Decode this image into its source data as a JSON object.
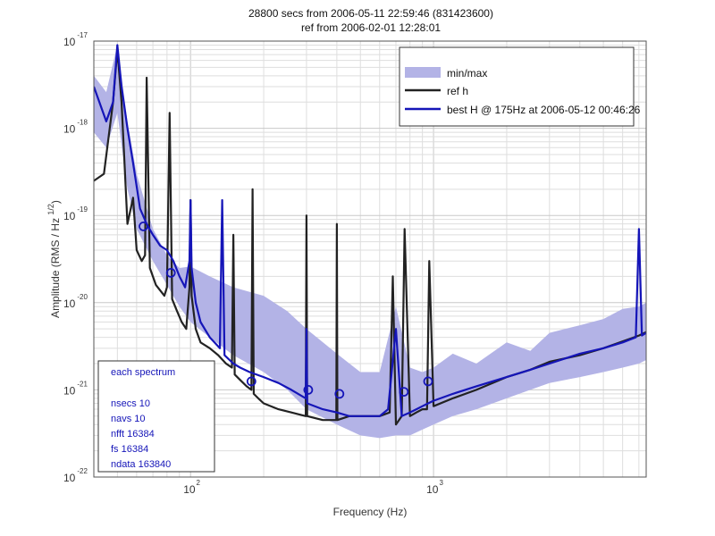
{
  "chart_data": {
    "type": "line",
    "title_line1": "28800 secs from 2006-05-11 22:59:46 (831423600)",
    "title_line2": "ref from 2006-02-01 12:28:01",
    "xlabel": "Frequency (Hz)",
    "ylabel_main": "Amplitude (RMS / Hz ",
    "ylabel_sup": "1/2",
    "ylabel_close": ")",
    "x_scale": "log",
    "y_scale": "log",
    "xlim": [
      40,
      7500
    ],
    "ylim": [
      1e-22,
      1e-17
    ],
    "grid": true,
    "x_ticks": [
      {
        "value": 100,
        "base": "10",
        "exp": "2"
      },
      {
        "value": 1000,
        "base": "10",
        "exp": "3"
      }
    ],
    "y_ticks": [
      {
        "value": 1e-22,
        "base": "10",
        "exp": "-22"
      },
      {
        "value": 1e-21,
        "base": "10",
        "exp": "-21"
      },
      {
        "value": 1e-20,
        "base": "10",
        "exp": "-20"
      },
      {
        "value": 1e-19,
        "base": "10",
        "exp": "-19"
      },
      {
        "value": 1e-18,
        "base": "10",
        "exp": "-18"
      },
      {
        "value": 1e-17,
        "base": "10",
        "exp": "-17"
      }
    ],
    "legend": {
      "placement": "top-right",
      "entries": [
        {
          "label": "min/max",
          "kind": "patch",
          "color": "#b3b3e6"
        },
        {
          "label": "ref h",
          "kind": "line",
          "color": "#222222"
        },
        {
          "label": "best H @ 175Hz at 2006-05-12 00:46:26",
          "kind": "line",
          "color": "#1515b8"
        }
      ]
    },
    "info_box": {
      "placement": "bottom-left",
      "lines": [
        "each spectrum",
        "",
        "nsecs 10",
        "navs 10",
        "nfft 16384",
        "fs 16384",
        "ndata 163840"
      ]
    },
    "series": [
      {
        "name": "min/max",
        "kind": "band",
        "color": "#b3b3e6",
        "x": [
          40,
          45,
          50,
          55,
          60,
          70,
          80,
          90,
          100,
          120,
          150,
          200,
          250,
          300,
          400,
          500,
          600,
          700,
          800,
          900,
          1000,
          1200,
          1500,
          2000,
          2500,
          3000,
          4000,
          5000,
          6000,
          7000,
          7500
        ],
        "upper": [
          4e-18,
          2.6e-18,
          9e-18,
          1.2e-18,
          3e-19,
          7e-20,
          3.5e-20,
          2.5e-20,
          2.6e-20,
          2e-20,
          1.5e-20,
          1.2e-20,
          8e-21,
          5e-21,
          2.6e-21,
          1.6e-21,
          1.6e-21,
          9e-21,
          1.8e-21,
          1.6e-21,
          1.8e-21,
          2.6e-21,
          2e-21,
          3.5e-21,
          2.8e-21,
          4.5e-21,
          5.5e-21,
          6.5e-21,
          8.5e-21,
          9e-21,
          1e-20
        ],
        "lower": [
          9e-19,
          6e-19,
          1.5e-18,
          2e-19,
          7e-20,
          3e-20,
          1.6e-20,
          9e-21,
          6e-21,
          4e-21,
          2.5e-21,
          1.6e-21,
          1e-21,
          6e-22,
          4e-22,
          3e-22,
          2.8e-22,
          3e-22,
          3e-22,
          3.5e-22,
          4e-22,
          5e-22,
          6e-22,
          8e-22,
          1e-21,
          1.2e-21,
          1.4e-21,
          1.6e-21,
          1.8e-21,
          2e-21,
          2.2e-21
        ]
      },
      {
        "name": "ref h",
        "kind": "line",
        "color": "#222222",
        "x": [
          40,
          44,
          48,
          50,
          52,
          55,
          58,
          60,
          63,
          65,
          66,
          68,
          72,
          78,
          80,
          82,
          84,
          88,
          92,
          96,
          99,
          100,
          101,
          105,
          110,
          120,
          130,
          140,
          148,
          150,
          152,
          160,
          170,
          178,
          180,
          182,
          190,
          200,
          230,
          260,
          298,
          300,
          302,
          350,
          398,
          400,
          402,
          450,
          500,
          600,
          660,
          680,
          700,
          740,
          760,
          800,
          850,
          900,
          940,
          960,
          1000,
          1200,
          1500,
          2000,
          2500,
          3000,
          4000,
          5000,
          6000,
          7000,
          7500
        ],
        "y": [
          2.5e-19,
          3e-19,
          2e-18,
          8e-18,
          2e-18,
          8e-20,
          1.6e-19,
          4e-20,
          3e-20,
          3.5e-20,
          3.8e-18,
          2.5e-20,
          1.6e-20,
          1.2e-20,
          1.5e-20,
          1.5e-18,
          1.1e-20,
          8e-21,
          6e-21,
          5e-21,
          1.5e-20,
          1.5e-19,
          1.2e-20,
          5e-21,
          3.5e-21,
          3e-21,
          2.5e-21,
          2e-21,
          1.8e-21,
          6e-20,
          1.5e-21,
          1.3e-21,
          1.1e-21,
          1e-21,
          2e-19,
          9e-22,
          8e-22,
          7e-22,
          6e-22,
          5.5e-22,
          5e-22,
          1e-19,
          5e-22,
          4.5e-22,
          4.5e-22,
          8e-20,
          4.5e-22,
          5e-22,
          5e-22,
          5e-22,
          5.5e-22,
          2e-20,
          4e-22,
          5e-22,
          7e-20,
          5e-22,
          5.5e-22,
          6e-22,
          6e-22,
          3e-20,
          6.5e-22,
          8e-22,
          1e-21,
          1.4e-21,
          1.7e-21,
          2.1e-21,
          2.5e-21,
          3e-21,
          3.6e-21,
          4.2e-21,
          4.6e-21
        ]
      },
      {
        "name": "best H @ 175Hz at 2006-05-12 00:46:26",
        "kind": "line",
        "color": "#1515b8",
        "x": [
          40,
          45,
          48,
          50,
          52,
          55,
          58,
          62,
          66,
          70,
          75,
          80,
          85,
          90,
          95,
          99,
          100,
          101,
          105,
          110,
          120,
          132,
          135,
          138,
          150,
          160,
          175,
          200,
          230,
          260,
          298,
          300,
          302,
          350,
          400,
          450,
          500,
          550,
          600,
          650,
          700,
          740,
          800,
          850,
          900,
          950,
          1000,
          1200,
          1500,
          2000,
          2500,
          3000,
          3500,
          4000,
          5000,
          6000,
          6800,
          7000,
          7200,
          7500
        ],
        "y": [
          3e-18,
          1.2e-18,
          2e-18,
          9e-18,
          3e-18,
          1e-18,
          4e-19,
          1.2e-19,
          8e-20,
          6e-20,
          4.5e-20,
          4e-20,
          3e-20,
          2e-20,
          1.5e-20,
          3e-20,
          1.5e-19,
          2.5e-20,
          1e-20,
          6e-21,
          4e-21,
          3e-21,
          1.5e-19,
          2.5e-21,
          2e-21,
          1.8e-21,
          1.6e-21,
          1.4e-21,
          1.2e-21,
          1e-21,
          8e-22,
          5e-21,
          7e-22,
          6e-22,
          5.5e-22,
          5e-22,
          5e-22,
          5e-22,
          5e-22,
          6e-22,
          5e-21,
          5e-22,
          5.5e-22,
          6e-22,
          6.5e-22,
          7e-22,
          7.5e-22,
          9e-22,
          1.1e-21,
          1.4e-21,
          1.7e-21,
          2e-21,
          2.3e-21,
          2.6e-21,
          3e-21,
          3.5e-21,
          4e-21,
          7e-20,
          4.2e-21,
          4.5e-21
        ]
      }
    ],
    "markers": {
      "shape": "circle",
      "color": "#1515b8",
      "points": [
        {
          "x": 64,
          "y": 7.5e-20
        },
        {
          "x": 83,
          "y": 2.2e-20
        },
        {
          "x": 178,
          "y": 1.25e-21
        },
        {
          "x": 305,
          "y": 1e-21
        },
        {
          "x": 410,
          "y": 9e-22
        },
        {
          "x": 755,
          "y": 9.5e-22
        },
        {
          "x": 950,
          "y": 1.25e-21
        }
      ]
    }
  }
}
